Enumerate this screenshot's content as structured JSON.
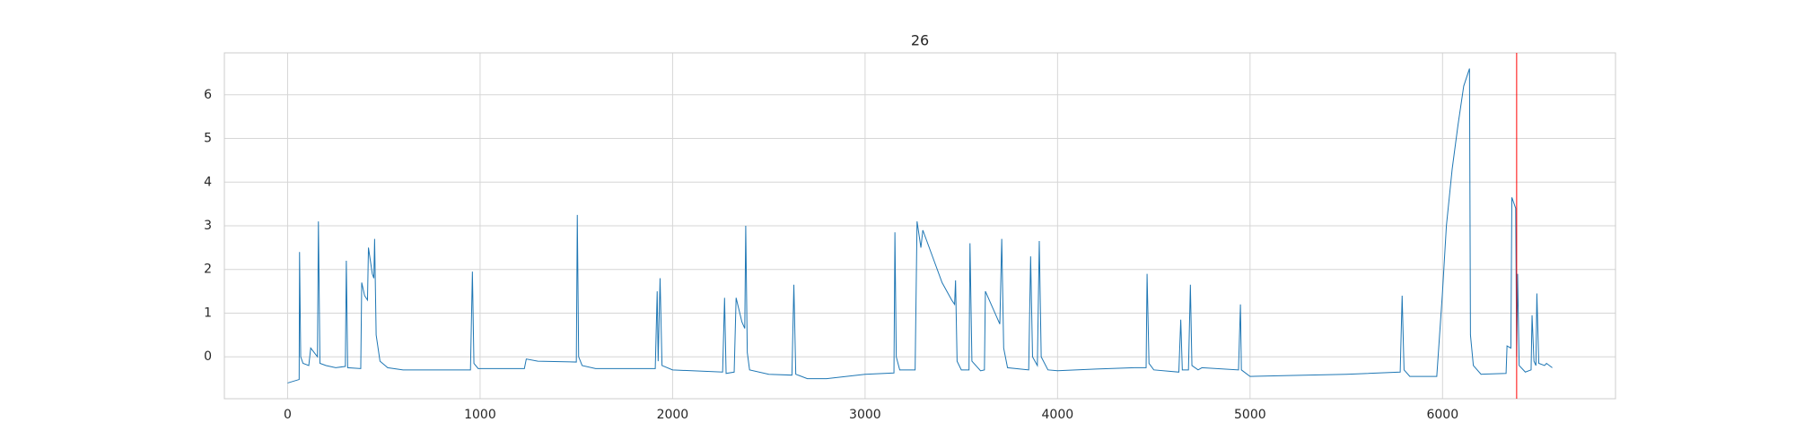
{
  "chart_data": {
    "type": "line",
    "title": "26",
    "x": [
      0,
      60,
      62,
      68,
      80,
      110,
      120,
      155,
      160,
      168,
      200,
      250,
      300,
      305,
      312,
      380,
      385,
      400,
      415,
      420,
      440,
      448,
      452,
      460,
      480,
      520,
      600,
      950,
      960,
      968,
      990,
      1230,
      1240,
      1300,
      1500,
      1505,
      1512,
      1530,
      1600,
      1910,
      1920,
      1925,
      1935,
      1945,
      2000,
      2100,
      2260,
      2270,
      2278,
      2320,
      2330,
      2360,
      2375,
      2380,
      2388,
      2400,
      2500,
      2620,
      2630,
      2640,
      2700,
      2800,
      3000,
      3150,
      3155,
      3162,
      3180,
      3260,
      3270,
      3290,
      3300,
      3350,
      3400,
      3450,
      3465,
      3470,
      3478,
      3500,
      3540,
      3545,
      3555,
      3600,
      3620,
      3625,
      3700,
      3710,
      3720,
      3740,
      3850,
      3860,
      3870,
      3895,
      3905,
      3915,
      3950,
      4000,
      4200,
      4400,
      4460,
      4465,
      4475,
      4500,
      4630,
      4640,
      4648,
      4680,
      4690,
      4698,
      4730,
      4750,
      4940,
      4950,
      4955,
      5000,
      5200,
      5500,
      5780,
      5790,
      5800,
      5830,
      5970,
      6000,
      6020,
      6050,
      6080,
      6110,
      6140,
      6145,
      6160,
      6200,
      6330,
      6335,
      6355,
      6360,
      6380,
      6385,
      6390,
      6398,
      6430,
      6460,
      6465,
      6475,
      6485,
      6490,
      6500,
      6530,
      6540,
      6570
    ],
    "series": [
      {
        "color": "#1f77b4",
        "values": [
          -0.6,
          -0.52,
          2.4,
          0.0,
          -0.15,
          -0.2,
          0.2,
          0.0,
          3.1,
          -0.15,
          -0.2,
          -0.25,
          -0.22,
          2.2,
          -0.25,
          -0.27,
          1.7,
          1.4,
          1.3,
          2.5,
          1.9,
          1.8,
          2.7,
          0.5,
          -0.1,
          -0.25,
          -0.3,
          -0.3,
          1.95,
          -0.15,
          -0.27,
          -0.27,
          -0.05,
          -0.1,
          -0.12,
          3.25,
          0.0,
          -0.2,
          -0.27,
          -0.27,
          1.5,
          -0.1,
          1.8,
          -0.2,
          -0.3,
          -0.32,
          -0.35,
          1.35,
          -0.38,
          -0.35,
          1.35,
          0.8,
          0.65,
          3.0,
          0.1,
          -0.3,
          -0.4,
          -0.42,
          1.65,
          -0.4,
          -0.5,
          -0.5,
          -0.4,
          -0.37,
          2.85,
          0.0,
          -0.3,
          -0.3,
          3.1,
          2.5,
          2.9,
          2.3,
          1.7,
          1.3,
          1.2,
          1.75,
          -0.1,
          -0.3,
          -0.3,
          2.6,
          -0.1,
          -0.32,
          -0.3,
          1.5,
          0.75,
          2.7,
          0.2,
          -0.25,
          -0.3,
          2.3,
          0.0,
          -0.2,
          2.65,
          0.0,
          -0.3,
          -0.32,
          -0.28,
          -0.25,
          -0.25,
          1.9,
          -0.15,
          -0.3,
          -0.35,
          0.85,
          -0.3,
          -0.3,
          1.65,
          -0.2,
          -0.3,
          -0.25,
          -0.3,
          1.2,
          -0.3,
          -0.45,
          -0.43,
          -0.4,
          -0.35,
          1.4,
          -0.3,
          -0.45,
          -0.45,
          1.5,
          3.0,
          4.3,
          5.3,
          6.2,
          6.6,
          0.5,
          -0.2,
          -0.4,
          -0.38,
          0.25,
          0.2,
          3.65,
          3.4,
          0.0,
          1.9,
          -0.2,
          -0.35,
          -0.3,
          0.95,
          -0.1,
          -0.2,
          1.45,
          -0.15,
          -0.2,
          -0.15,
          -0.25
        ]
      }
    ],
    "vline_x": 6385,
    "vline_color": "#ff0000",
    "xlim": [
      -328.5,
      6898.5
    ],
    "xticks": [
      0,
      1000,
      2000,
      3000,
      4000,
      5000,
      6000
    ],
    "ylim": [
      -0.96,
      6.96
    ],
    "yticks": [
      0,
      1,
      2,
      3,
      4,
      5,
      6
    ],
    "grid": true
  }
}
